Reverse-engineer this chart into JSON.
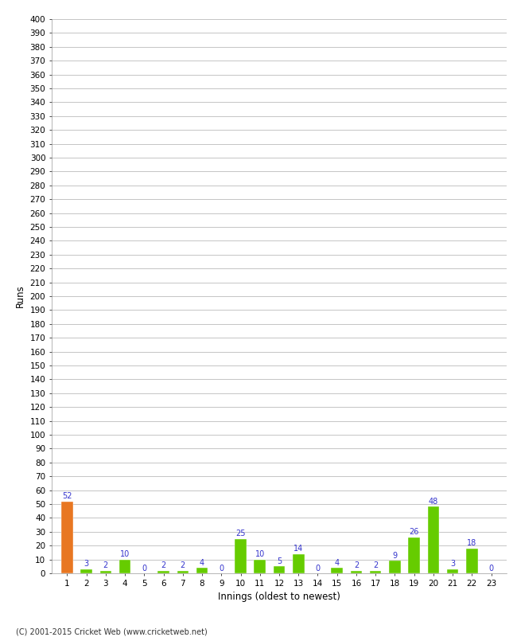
{
  "xlabel": "Innings (oldest to newest)",
  "ylabel": "Runs",
  "innings": [
    1,
    2,
    3,
    4,
    5,
    6,
    7,
    8,
    9,
    10,
    11,
    12,
    13,
    14,
    15,
    16,
    17,
    18,
    19,
    20,
    21,
    22,
    23
  ],
  "values": [
    52,
    3,
    2,
    10,
    0,
    2,
    2,
    4,
    0,
    25,
    10,
    5,
    14,
    0,
    4,
    2,
    2,
    9,
    26,
    48,
    3,
    18,
    0
  ],
  "bar_colors": [
    "#e87722",
    "#66cc00",
    "#66cc00",
    "#66cc00",
    "#66cc00",
    "#66cc00",
    "#66cc00",
    "#66cc00",
    "#66cc00",
    "#66cc00",
    "#66cc00",
    "#66cc00",
    "#66cc00",
    "#66cc00",
    "#66cc00",
    "#66cc00",
    "#66cc00",
    "#66cc00",
    "#66cc00",
    "#66cc00",
    "#66cc00",
    "#66cc00",
    "#66cc00"
  ],
  "ylim": [
    0,
    400
  ],
  "yticks": [
    0,
    10,
    20,
    30,
    40,
    50,
    60,
    70,
    80,
    90,
    100,
    110,
    120,
    130,
    140,
    150,
    160,
    170,
    180,
    190,
    200,
    210,
    220,
    230,
    240,
    250,
    260,
    270,
    280,
    290,
    300,
    310,
    320,
    330,
    340,
    350,
    360,
    370,
    380,
    390,
    400
  ],
  "label_color": "#3333cc",
  "label_fontsize": 7,
  "background_color": "#ffffff",
  "grid_color": "#bbbbbb",
  "footer": "(C) 2001-2015 Cricket Web (www.cricketweb.net)"
}
